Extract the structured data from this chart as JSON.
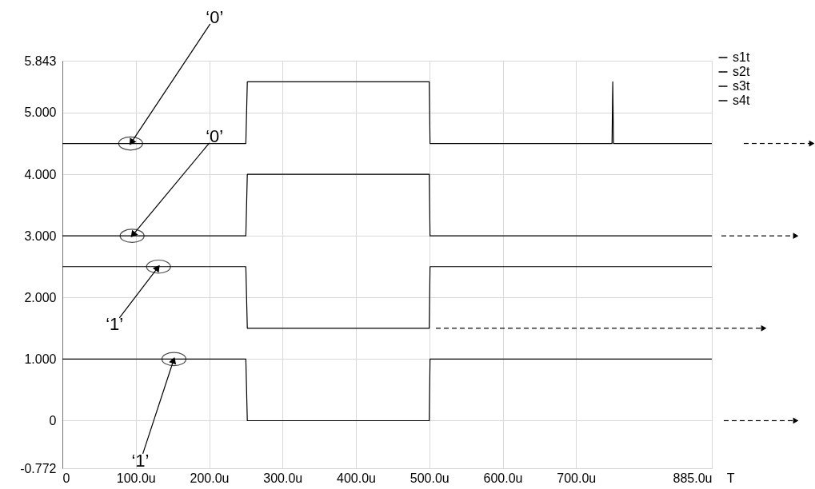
{
  "chart_data": {
    "type": "line",
    "xlabel": "T",
    "xlim": [
      0,
      885
    ],
    "xticks": [
      0,
      {
        "value": 100,
        "label": "100.0u"
      },
      {
        "value": 200,
        "label": "200.0u"
      },
      {
        "value": 300,
        "label": "300.0u"
      },
      {
        "value": 400,
        "label": "400.0u"
      },
      {
        "value": 500,
        "label": "500.0u"
      },
      {
        "value": 600,
        "label": "600.0u"
      },
      {
        "value": 700,
        "label": "700.0u"
      },
      {
        "value": 885,
        "label": "885.0u"
      }
    ],
    "ylim": [
      -0.772,
      5.843
    ],
    "yticks": [
      {
        "value": -0.772,
        "label": "-0.772"
      },
      0,
      {
        "value": 1,
        "label": "1.000"
      },
      {
        "value": 2,
        "label": "2.000"
      },
      {
        "value": 3,
        "label": "3.000"
      },
      {
        "value": 4,
        "label": "4.000"
      },
      {
        "value": 5,
        "label": "5.000"
      },
      {
        "value": 5.843,
        "label": "5.843"
      }
    ],
    "series": [
      {
        "name": "s1t",
        "color": "#000000",
        "x": [
          0,
          250,
          252,
          500,
          501,
          749,
          750,
          751,
          885
        ],
        "values": [
          4.5,
          4.5,
          5.5,
          5.5,
          4.5,
          4.5,
          5.5,
          4.5,
          4.5
        ]
      },
      {
        "name": "s2t",
        "color": "#000000",
        "x": [
          0,
          250,
          252,
          500,
          501,
          885
        ],
        "values": [
          3,
          3,
          4,
          4,
          3,
          3
        ]
      },
      {
        "name": "s3t",
        "color": "#000000",
        "x": [
          0,
          250,
          252,
          500,
          501,
          885
        ],
        "values": [
          2.5,
          2.5,
          1.5,
          1.5,
          2.5,
          2.5
        ]
      },
      {
        "name": "s4t",
        "color": "#000000",
        "x": [
          0,
          250,
          252,
          500,
          501,
          885
        ],
        "values": [
          1,
          1,
          0,
          0,
          1,
          1
        ]
      }
    ],
    "annotations": [
      {
        "text": "‘0’",
        "x": 93,
        "y": 4.5
      },
      {
        "text": "‘0’",
        "x": 95,
        "y": 3
      },
      {
        "text": "‘1’",
        "x": 131,
        "y": 2.5
      },
      {
        "text": "‘1’",
        "x": 152,
        "y": 1
      }
    ],
    "grid": true,
    "legend": "top right",
    "line_style": "solid",
    "marker": "none"
  }
}
